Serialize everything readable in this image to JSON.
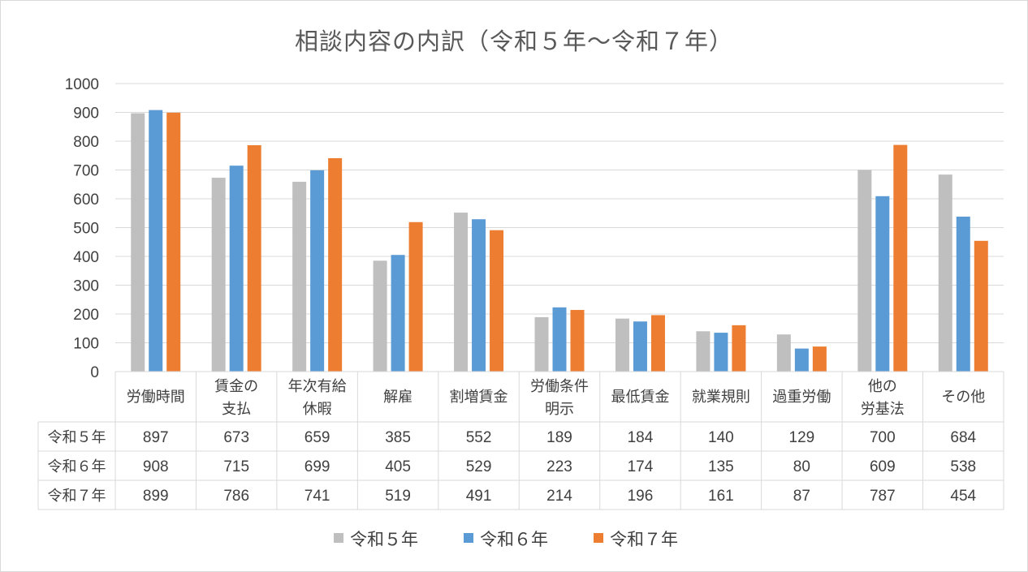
{
  "chart_data": {
    "type": "bar",
    "title": "相談内容の内訳（令和５年～令和７年）",
    "categories": [
      [
        "労働時間"
      ],
      [
        "賃金の",
        "支払"
      ],
      [
        "年次有給",
        "休暇"
      ],
      [
        "解雇"
      ],
      [
        "割増賃金"
      ],
      [
        "労働条件",
        "明示"
      ],
      [
        "最低賃金"
      ],
      [
        "就業規則"
      ],
      [
        "過重労働"
      ],
      [
        "他の",
        "労基法"
      ],
      [
        "その他"
      ]
    ],
    "series": [
      {
        "name": "令和５年",
        "color": "#bfbfbf",
        "values": [
          897,
          673,
          659,
          385,
          552,
          189,
          184,
          140,
          129,
          700,
          684
        ]
      },
      {
        "name": "令和６年",
        "color": "#5b9bd5",
        "values": [
          908,
          715,
          699,
          405,
          529,
          223,
          174,
          135,
          80,
          609,
          538
        ]
      },
      {
        "name": "令和７年",
        "color": "#ed7d31",
        "values": [
          899,
          786,
          741,
          519,
          491,
          214,
          196,
          161,
          87,
          787,
          454
        ]
      }
    ],
    "ylim": [
      0,
      1000
    ],
    "yticks": [
      0,
      100,
      200,
      300,
      400,
      500,
      600,
      700,
      800,
      900,
      1000
    ],
    "grid": true,
    "legend_position": "bottom",
    "data_table": true
  }
}
